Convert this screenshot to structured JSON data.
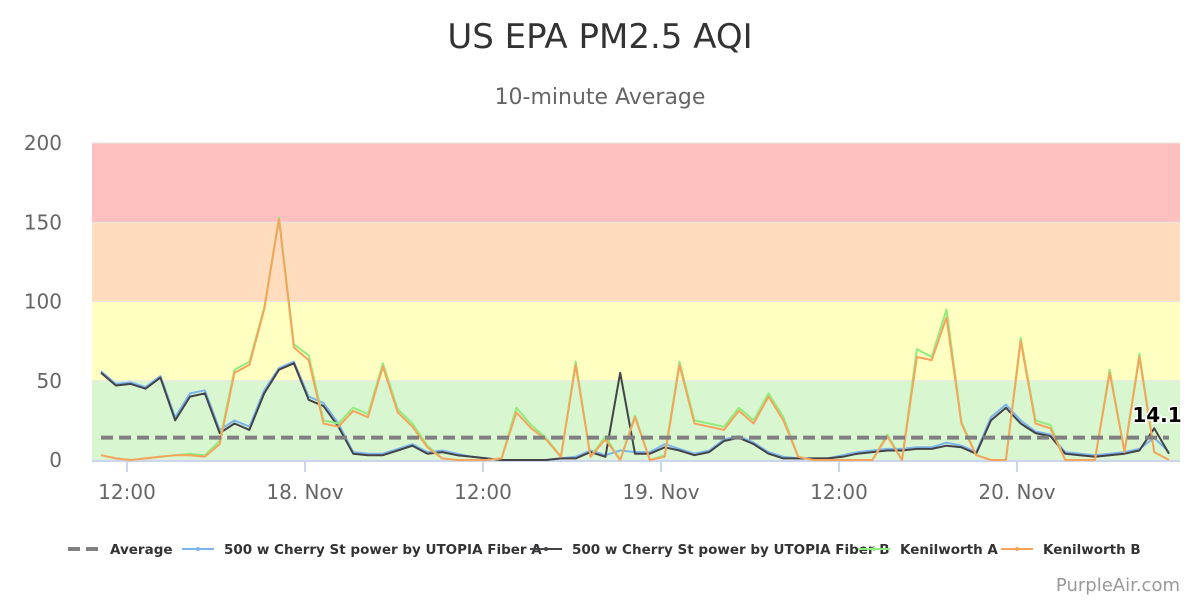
{
  "chart_data": {
    "type": "line",
    "title": "US EPA PM2.5 AQI",
    "subtitle": "10-minute Average",
    "xlabel": "",
    "ylabel": "",
    "ylim": [
      0,
      200
    ],
    "yticks": [
      "0",
      "50",
      "100",
      "150",
      "200"
    ],
    "xtick_labels": [
      {
        "time": "17 Nov 12:00",
        "label": "12:00"
      },
      {
        "time": "18 Nov 00:00",
        "label": "18. Nov"
      },
      {
        "time": "18 Nov 12:00",
        "label": "12:00"
      },
      {
        "time": "19 Nov 00:00",
        "label": "19. Nov"
      },
      {
        "time": "19 Nov 12:00",
        "label": "12:00"
      },
      {
        "time": "20 Nov 00:00",
        "label": "20. Nov"
      }
    ],
    "x_start": "17 Nov 10:00",
    "x_step": "1 hour",
    "bands": [
      {
        "from": 0,
        "to": 50,
        "color": "#d8f7d0"
      },
      {
        "from": 50,
        "to": 100,
        "color": "#ffffc2"
      },
      {
        "from": 100,
        "to": 150,
        "color": "#fedcbd"
      },
      {
        "from": 150,
        "to": 200,
        "color": "#ffbfbf"
      }
    ],
    "average": {
      "name": "Average",
      "value": 14.1,
      "label": "14.1",
      "color": "#808080"
    },
    "series": [
      {
        "name": "500 w Cherry St power by UTOPIA Fiber A",
        "color": "#7cb5ec",
        "values": [
          56,
          48,
          49,
          46,
          53,
          27,
          42,
          44,
          19,
          25,
          21,
          44,
          58,
          62,
          40,
          36,
          23,
          5,
          4,
          4,
          7,
          10,
          5,
          6,
          4,
          2,
          1,
          0,
          0,
          0,
          0,
          1,
          2,
          6,
          3,
          6,
          5,
          5,
          10,
          7,
          4,
          6,
          13,
          15,
          11,
          5,
          2,
          1,
          1,
          1,
          3,
          5,
          6,
          7,
          7,
          8,
          8,
          11,
          9,
          5,
          27,
          35,
          25,
          18,
          16,
          5,
          4,
          3,
          4,
          5,
          7,
          14,
          5
        ]
      },
      {
        "name": "500 w Cherry St power by UTOPIA Fiber B",
        "color": "#434348",
        "values": [
          55,
          47,
          48,
          45,
          52,
          25,
          40,
          42,
          17,
          23,
          19,
          42,
          57,
          61,
          38,
          34,
          21,
          4,
          3,
          3,
          6,
          9,
          4,
          5,
          3,
          2,
          1,
          0,
          0,
          0,
          0,
          1,
          1,
          5,
          2,
          55,
          4,
          4,
          8,
          6,
          3,
          5,
          12,
          14,
          10,
          4,
          1,
          1,
          1,
          1,
          2,
          4,
          5,
          6,
          6,
          7,
          7,
          9,
          8,
          4,
          25,
          33,
          23,
          17,
          15,
          4,
          3,
          2,
          3,
          4,
          6,
          20,
          4
        ]
      },
      {
        "name": "Kenilworth A",
        "color": "#90ed7d",
        "values": [
          3,
          1,
          0,
          1,
          2,
          3,
          4,
          3,
          12,
          57,
          62,
          96,
          153,
          73,
          66,
          25,
          23,
          33,
          29,
          61,
          32,
          23,
          9,
          1,
          0,
          0,
          0,
          1,
          33,
          22,
          14,
          2,
          62,
          2,
          15,
          0,
          28,
          0,
          3,
          62,
          25,
          23,
          21,
          33,
          25,
          42,
          27,
          2,
          0,
          0,
          0,
          0,
          0,
          16,
          0,
          70,
          65,
          95,
          24,
          3,
          0,
          0,
          77,
          25,
          22,
          0,
          0,
          0,
          57,
          5,
          67,
          5,
          0
        ]
      },
      {
        "name": "Kenilworth B",
        "color": "#f7a35c",
        "values": [
          3,
          1,
          0,
          1,
          2,
          3,
          3,
          2,
          10,
          55,
          60,
          95,
          152,
          71,
          63,
          23,
          21,
          31,
          27,
          59,
          30,
          21,
          8,
          1,
          0,
          0,
          0,
          1,
          30,
          20,
          13,
          2,
          60,
          2,
          13,
          0,
          27,
          0,
          2,
          60,
          23,
          21,
          19,
          31,
          23,
          40,
          25,
          2,
          0,
          0,
          0,
          0,
          0,
          15,
          0,
          65,
          63,
          90,
          23,
          3,
          0,
          0,
          75,
          23,
          20,
          0,
          0,
          0,
          55,
          5,
          65,
          5,
          0
        ]
      }
    ],
    "legend_position": "bottom",
    "grid": true
  },
  "credit": "PurpleAir.com"
}
